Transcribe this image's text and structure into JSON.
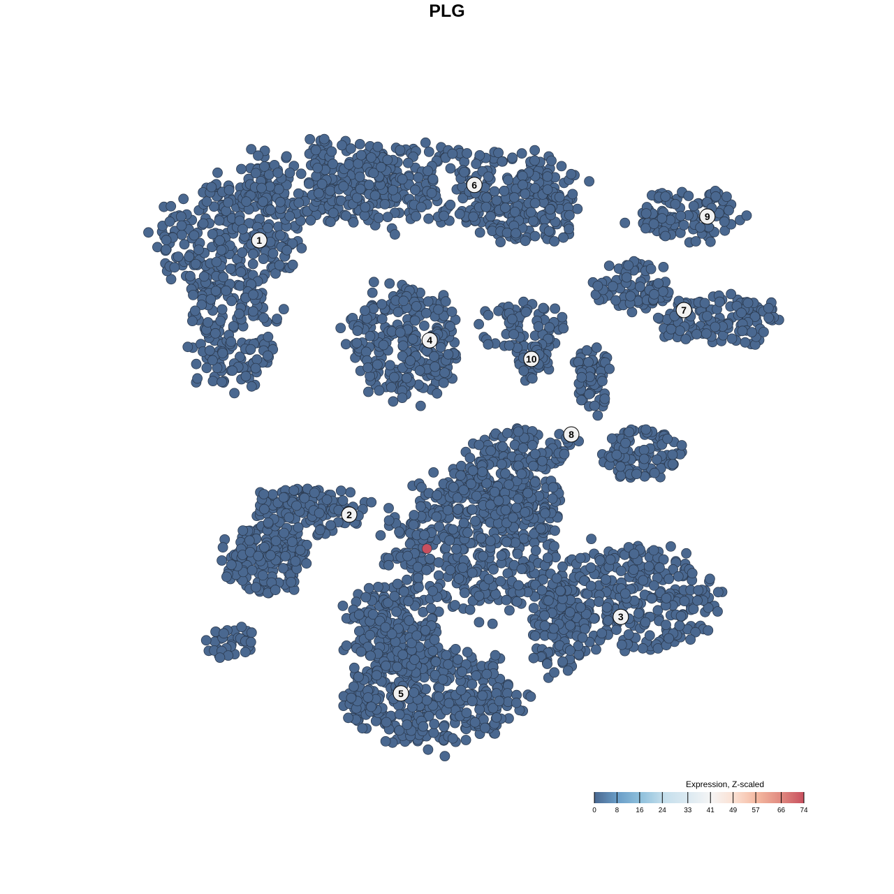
{
  "chart_data": {
    "type": "scatter",
    "title": "PLG",
    "xlabel": "",
    "ylabel": "",
    "grid": false,
    "axes_visible": false,
    "point_color_low": "#4a6890",
    "point_color_high": "#c8505f",
    "legend": {
      "title": "Expression, Z-scaled",
      "placement": "bottom-right",
      "range": [
        0,
        74
      ],
      "ticks": [
        "0",
        "8",
        "16",
        "24",
        "33",
        "41",
        "49",
        "57",
        "66",
        "74"
      ],
      "tick_values": [
        0,
        8,
        16,
        24,
        33,
        41,
        49,
        57,
        66,
        74
      ],
      "colors": [
        "#4a6890",
        "#6a9ec8",
        "#8fc0dc",
        "#c5dfec",
        "#dbe9f1",
        "#f5f5f5",
        "#fbe0d2",
        "#f4b8a0",
        "#e08a80",
        "#c8505f"
      ]
    },
    "default_value": 0,
    "highlighted_points": [
      {
        "x": -3.6,
        "y": -18.2,
        "value": 74
      }
    ],
    "clusters": [
      {
        "label": "1",
        "center": [
          -33.6,
          37.0
        ],
        "regions": [
          [
            -38.75,
            37.5,
            13.5,
            11,
            260
          ],
          [
            -38.75,
            20,
            8.5,
            11,
            150
          ],
          [
            -21.25,
            47.5,
            15,
            7.5,
            200
          ]
        ]
      },
      {
        "label": "6",
        "center": [
          4.9,
          46.9
        ],
        "regions": [
          [
            0,
            46.25,
            25,
            7.5,
            330
          ],
          [
            15,
            41.25,
            10,
            5,
            90
          ]
        ]
      },
      {
        "label": "4",
        "center": [
          -3.1,
          19.1
        ],
        "regions": [
          [
            -7.5,
            18.75,
            10,
            10.5,
            260
          ]
        ]
      },
      {
        "label": "9",
        "center": [
          46.6,
          41.25
        ],
        "regions": [
          [
            43.75,
            41.25,
            10,
            5,
            110
          ]
        ]
      },
      {
        "label": "7",
        "center": [
          42.4,
          24.5
        ],
        "regions": [
          [
            32.5,
            28.75,
            7.5,
            5,
            80
          ],
          [
            48.75,
            22.5,
            11,
            4.5,
            120
          ]
        ]
      },
      {
        "label": "10",
        "center": [
          15.1,
          15.75
        ],
        "regions": [
          [
            13.75,
            21.25,
            8.5,
            5,
            70
          ],
          [
            15.6,
            15,
            3,
            4.5,
            30
          ]
        ]
      },
      {
        "label": "8",
        "center": [
          22.25,
          2.25
        ],
        "regions": [
          [
            26.25,
            12.5,
            3.75,
            6.25,
            60
          ],
          [
            35,
            -1.25,
            7.5,
            5,
            110
          ],
          [
            13.75,
            0,
            10,
            3.2,
            80
          ]
        ]
      },
      {
        "label": "2",
        "center": [
          -17.5,
          -12.1
        ],
        "regions": [
          [
            -32.5,
            -20,
            7.5,
            6.25,
            170
          ],
          [
            -25,
            -11.25,
            10,
            4.4,
            130
          ],
          [
            -38.75,
            -35,
            5,
            3,
            35
          ]
        ]
      },
      {
        "label": "3",
        "center": [
          31.1,
          -30.4
        ],
        "regions": [
          [
            32.5,
            -27.5,
            16,
            10,
            330
          ],
          [
            20,
            -32.5,
            5,
            8.75,
            110
          ]
        ]
      },
      {
        "label": "5",
        "center": [
          -8.25,
          -44.1
        ],
        "regions": [
          [
            -2.5,
            -45,
            16,
            8.75,
            380
          ],
          [
            -10,
            -32.5,
            8.75,
            8.75,
            200
          ]
        ]
      },
      {
        "label": "",
        "center": [
          5,
          -17.5
        ],
        "regions": [
          [
            5,
            -17.5,
            16,
            12.5,
            420
          ],
          [
            10,
            -7.5,
            11,
            6.25,
            170
          ]
        ]
      }
    ]
  }
}
